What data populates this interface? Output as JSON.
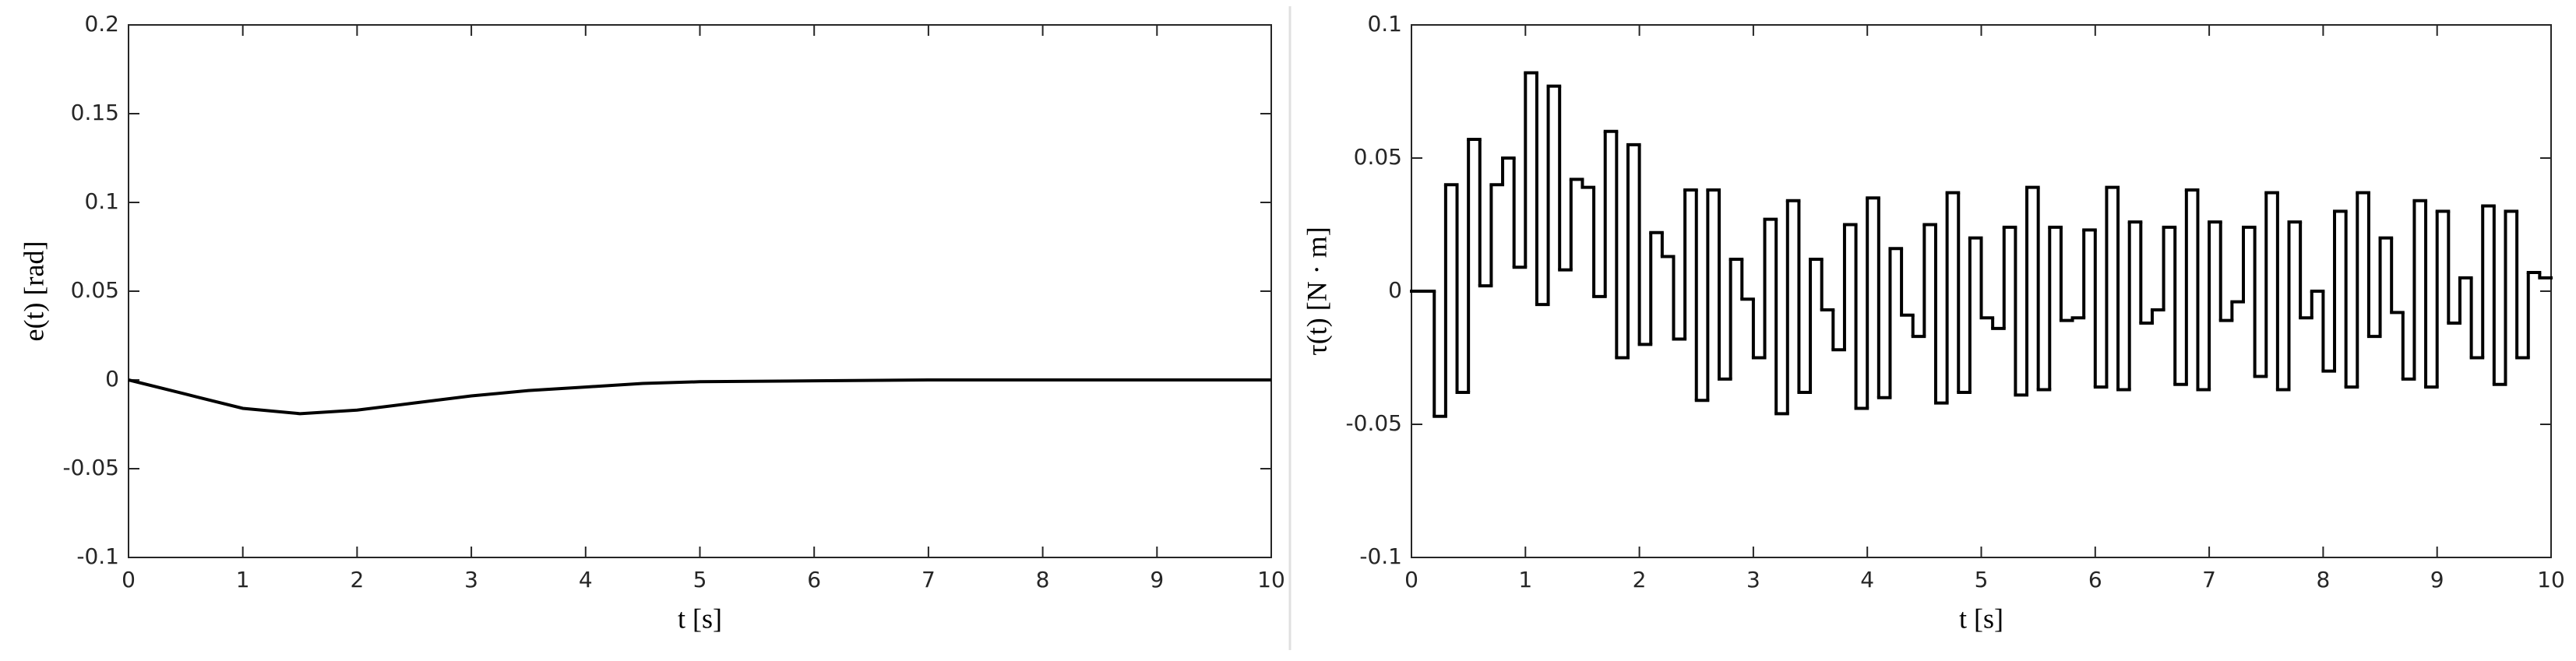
{
  "chart_data": [
    {
      "type": "line",
      "xlabel": "t [s]",
      "ylabel": "e(t) [rad]",
      "color": "#000000",
      "x": [
        0,
        0.5,
        1,
        1.5,
        2,
        2.5,
        3,
        3.5,
        4,
        4.5,
        5,
        6,
        7,
        8,
        9,
        10
      ],
      "values": [
        0,
        -0.008,
        -0.016,
        -0.019,
        -0.017,
        -0.013,
        -0.009,
        -0.006,
        -0.004,
        -0.002,
        -0.001,
        -0.0005,
        0,
        0,
        0,
        0
      ],
      "xlim": [
        0,
        10
      ],
      "xticks": [
        0,
        1,
        2,
        3,
        4,
        5,
        6,
        7,
        8,
        9,
        10
      ],
      "ylim": [
        -0.1,
        0.2
      ],
      "yticks": [
        -0.1,
        -0.05,
        0,
        0.05,
        0.1,
        0.15,
        0.2
      ]
    },
    {
      "type": "step",
      "xlabel": "t [s]",
      "ylabel": "τ(t) [N · m]",
      "color": "#000000",
      "x": [
        0,
        0.1,
        0.2,
        0.3,
        0.4,
        0.5,
        0.6,
        0.7,
        0.8,
        0.9,
        1,
        1.1,
        1.2,
        1.3,
        1.4,
        1.5,
        1.6,
        1.7,
        1.8,
        1.9,
        2,
        2.1,
        2.2,
        2.3,
        2.4,
        2.5,
        2.6,
        2.7,
        2.8,
        2.9,
        3,
        3.1,
        3.2,
        3.3,
        3.4,
        3.5,
        3.6,
        3.7,
        3.8,
        3.9,
        4,
        4.1,
        4.2,
        4.3,
        4.4,
        4.5,
        4.6,
        4.7,
        4.8,
        4.9,
        5,
        5.1,
        5.2,
        5.3,
        5.4,
        5.5,
        5.6,
        5.7,
        5.8,
        5.9,
        6,
        6.1,
        6.2,
        6.3,
        6.4,
        6.5,
        6.6,
        6.7,
        6.8,
        6.9,
        7,
        7.1,
        7.2,
        7.3,
        7.4,
        7.5,
        7.6,
        7.7,
        7.8,
        7.9,
        8,
        8.1,
        8.2,
        8.3,
        8.4,
        8.5,
        8.6,
        8.7,
        8.8,
        8.9,
        9,
        9.1,
        9.2,
        9.3,
        9.4,
        9.5,
        9.6,
        9.7,
        9.8,
        9.9
      ],
      "values": [
        0,
        0,
        -0.047,
        0.04,
        -0.038,
        0.057,
        0.002,
        0.04,
        0.05,
        0.009,
        0.082,
        -0.005,
        0.077,
        0.008,
        0.042,
        0.039,
        -0.002,
        0.06,
        -0.025,
        0.055,
        -0.02,
        0.022,
        0.013,
        -0.018,
        0.038,
        -0.041,
        0.038,
        -0.033,
        0.012,
        -0.003,
        -0.025,
        0.027,
        -0.046,
        0.034,
        -0.038,
        0.012,
        -0.007,
        -0.022,
        0.025,
        -0.044,
        0.035,
        -0.04,
        0.016,
        -0.009,
        -0.017,
        0.025,
        -0.042,
        0.037,
        -0.038,
        0.02,
        -0.01,
        -0.014,
        0.024,
        -0.039,
        0.039,
        -0.037,
        0.024,
        -0.011,
        -0.01,
        0.023,
        -0.036,
        0.039,
        -0.037,
        0.026,
        -0.012,
        -0.007,
        0.024,
        -0.035,
        0.038,
        -0.037,
        0.026,
        -0.011,
        -0.004,
        0.024,
        -0.032,
        0.037,
        -0.037,
        0.026,
        -0.01,
        0,
        -0.03,
        0.03,
        -0.036,
        0.037,
        -0.017,
        0.02,
        -0.008,
        -0.033,
        0.034,
        -0.036,
        0.03,
        -0.012,
        0.005,
        -0.025,
        0.032,
        -0.035,
        0.03,
        -0.025,
        0.007,
        0.005
      ],
      "xlim": [
        0,
        10
      ],
      "xticks": [
        0,
        1,
        2,
        3,
        4,
        5,
        6,
        7,
        8,
        9,
        10
      ],
      "ylim": [
        -0.1,
        0.1
      ],
      "yticks": [
        -0.1,
        -0.05,
        0,
        0.05,
        0.1
      ]
    }
  ]
}
